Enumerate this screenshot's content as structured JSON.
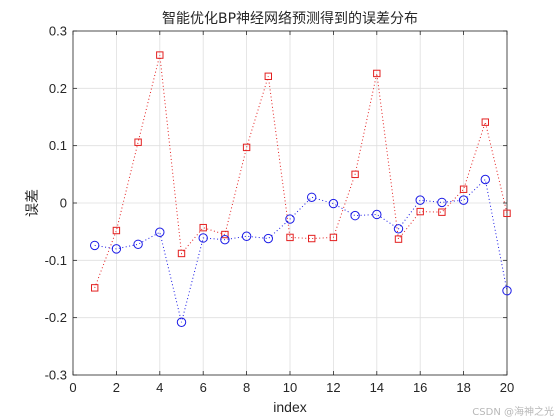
{
  "chart_data": {
    "type": "line",
    "title": "智能优化BP神经网络预测得到的误差分布",
    "xlabel": "index",
    "ylabel": "误差",
    "xlim": [
      0,
      20
    ],
    "ylim": [
      -0.3,
      0.3
    ],
    "xticks": [
      "0",
      "2",
      "4",
      "6",
      "8",
      "10",
      "12",
      "14",
      "16",
      "18",
      "20"
    ],
    "yticks": [
      "-0.3",
      "-0.2",
      "-0.1",
      "0",
      "0.1",
      "0.2",
      "0.3"
    ],
    "grid": true,
    "x": [
      1,
      2,
      3,
      4,
      5,
      6,
      7,
      8,
      9,
      10,
      11,
      12,
      13,
      14,
      15,
      16,
      17,
      18,
      19,
      20
    ],
    "series": [
      {
        "color": "#e32020",
        "marker": "square",
        "line_style": "dotted",
        "values": [
          -0.148,
          -0.048,
          0.106,
          0.258,
          -0.088,
          -0.043,
          -0.055,
          0.097,
          0.221,
          -0.06,
          -0.062,
          -0.06,
          0.05,
          0.226,
          -0.063,
          -0.015,
          -0.016,
          0.024,
          0.141,
          -0.018
        ]
      },
      {
        "color": "#1a1ae6",
        "marker": "circle",
        "line_style": "dotted",
        "values": [
          -0.074,
          -0.08,
          -0.072,
          -0.051,
          -0.208,
          -0.061,
          -0.064,
          -0.058,
          -0.062,
          -0.028,
          0.01,
          -0.001,
          -0.022,
          -0.02,
          -0.045,
          0.005,
          0.001,
          0.005,
          0.041,
          -0.153
        ]
      }
    ]
  },
  "watermark": "CSDN @海神之光"
}
